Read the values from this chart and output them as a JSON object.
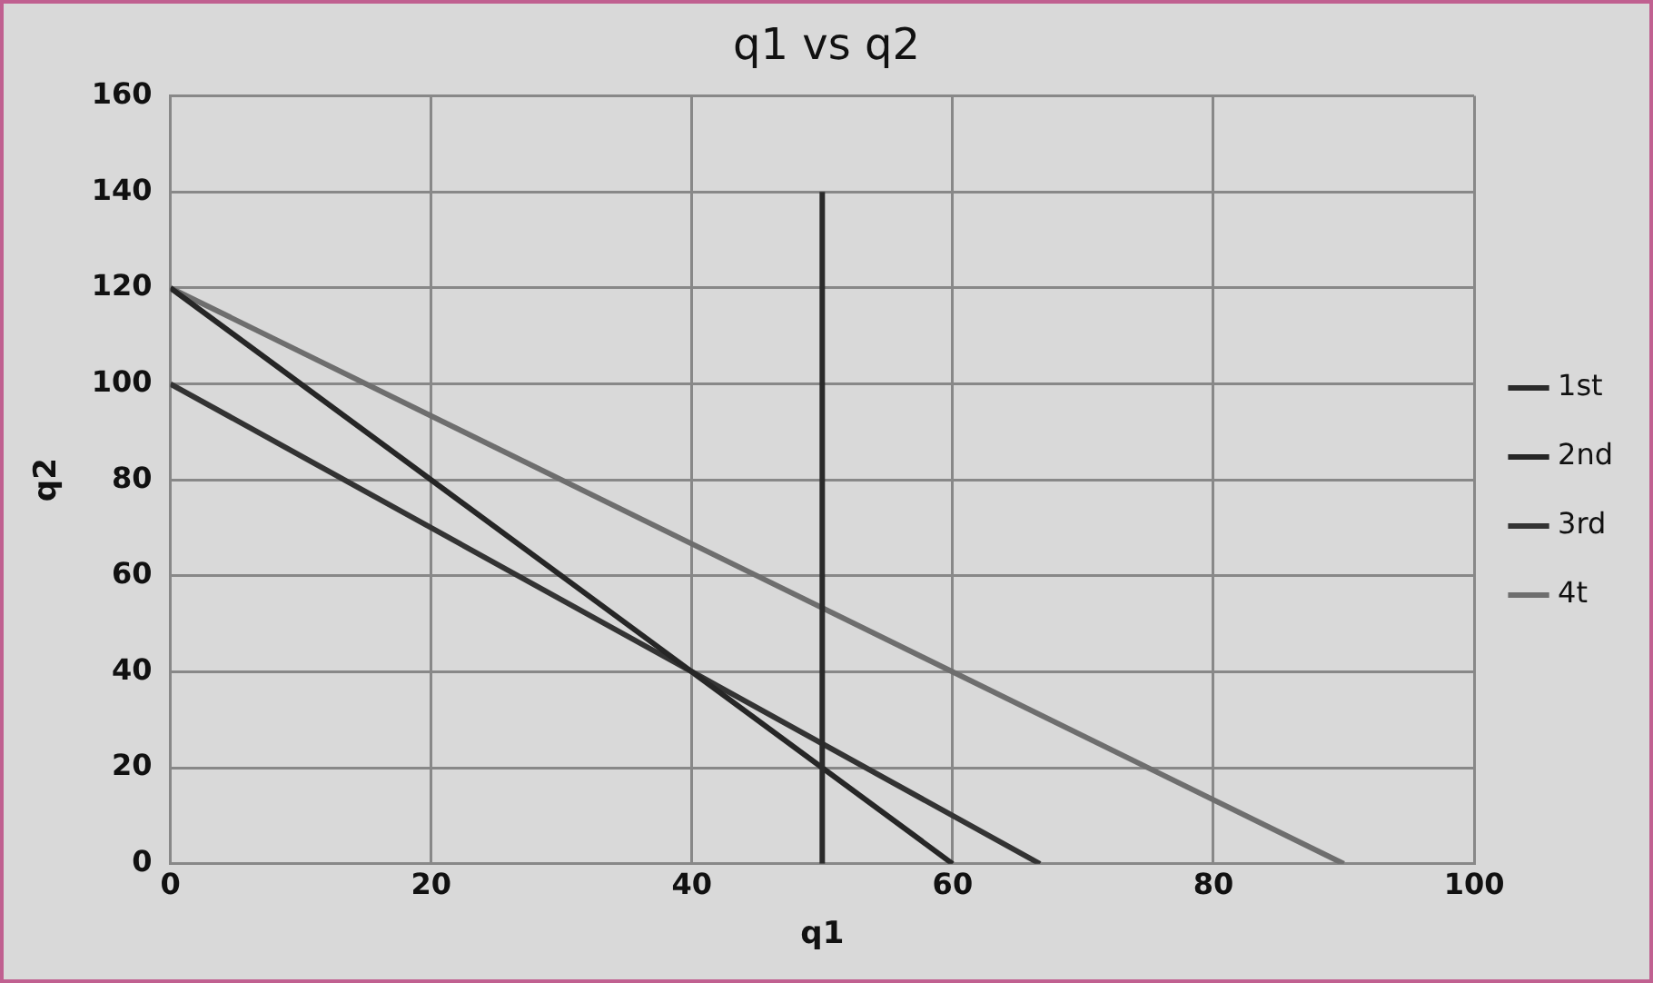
{
  "chart_data": {
    "type": "line",
    "title": "q1 vs q2",
    "xlabel": "q1",
    "ylabel": "q2",
    "xlim": [
      0,
      100
    ],
    "xticks": [
      0,
      20,
      40,
      60,
      80,
      100
    ],
    "ylim": [
      0,
      160
    ],
    "yticks": [
      0,
      20,
      40,
      60,
      80,
      100,
      120,
      140,
      160
    ],
    "grid": true,
    "legend": "right",
    "marker": "none",
    "line_style": "solid",
    "series": [
      {
        "name": "1st",
        "color": "#2b2b2b",
        "x": [
          50,
          50
        ],
        "values": [
          0,
          140
        ]
      },
      {
        "name": "2nd",
        "color": "#262626",
        "x": [
          0,
          60
        ],
        "values": [
          120,
          0
        ]
      },
      {
        "name": "3rd",
        "color": "#333333",
        "x": [
          0,
          66.7
        ],
        "values": [
          100,
          0
        ]
      },
      {
        "name": "4t",
        "color": "#6e6e6e",
        "x": [
          0,
          90
        ],
        "values": [
          120,
          0
        ]
      }
    ]
  }
}
